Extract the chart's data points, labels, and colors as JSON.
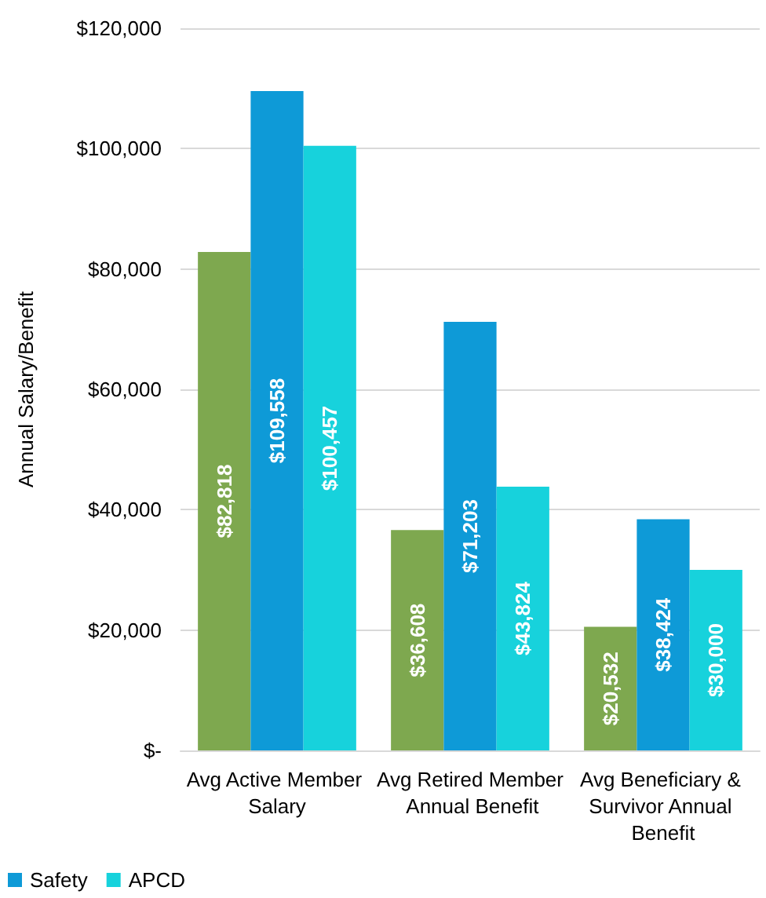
{
  "chart_data": {
    "type": "bar",
    "ylabel": "Annual Salary/Benefit",
    "categories": [
      "Avg Active Member Salary",
      "Avg Retired Member Annual Benefit",
      "Avg Beneficiary & Survivor Annual Benefit"
    ],
    "series": [
      {
        "color": "#7ea84f",
        "values": [
          82818,
          36608,
          20532
        ],
        "value_labels": [
          "$82,818",
          "$36,608",
          "$20,532"
        ]
      },
      {
        "name": "Safety",
        "color": "#0e9ad7",
        "values": [
          109558,
          71203,
          38424
        ],
        "value_labels": [
          "$109,558",
          "$71,203",
          "$38,424"
        ]
      },
      {
        "name": "APCD",
        "color": "#17d2dc",
        "values": [
          100457,
          43824,
          30000
        ],
        "value_labels": [
          "$100,457",
          "$43,824",
          "$30,000"
        ]
      }
    ],
    "ylim": [
      0,
      120000
    ],
    "yticks": [
      {
        "value": 0,
        "label": "$-"
      },
      {
        "value": 20000,
        "label": "$20,000"
      },
      {
        "value": 40000,
        "label": "$40,000"
      },
      {
        "value": 60000,
        "label": "$60,000"
      },
      {
        "value": 80000,
        "label": "$80,000"
      },
      {
        "value": 100000,
        "label": "$100,000"
      },
      {
        "value": 120000,
        "label": "$120,000"
      }
    ],
    "grid": "y",
    "legend": "bottom left"
  }
}
